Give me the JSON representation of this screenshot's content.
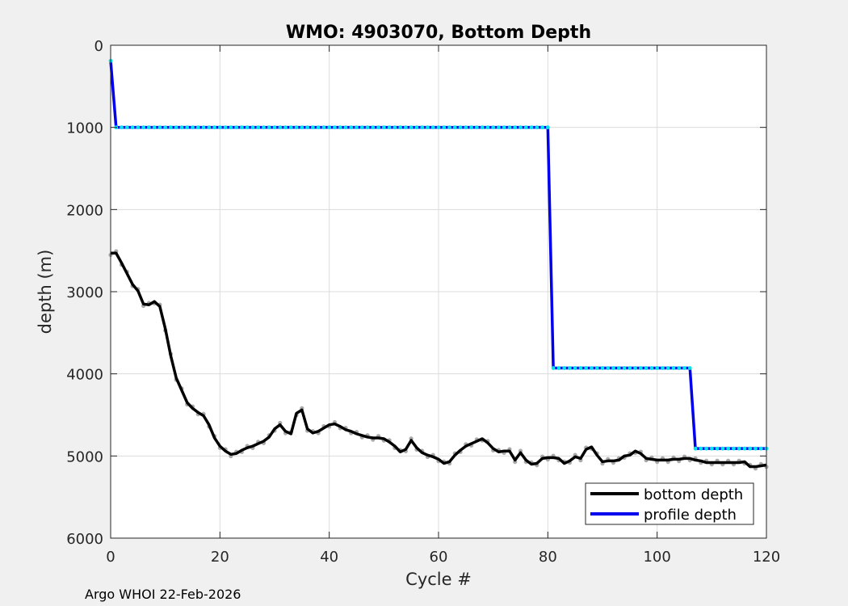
{
  "chart_data": {
    "type": "line",
    "title": "WMO: 4903070, Bottom Depth",
    "xlabel": "Cycle #",
    "ylabel": "depth (m)",
    "xlim": [
      0,
      120
    ],
    "ylim": [
      0,
      6000
    ],
    "y_reversed": true,
    "grid": true,
    "xticks": [
      0,
      20,
      40,
      60,
      80,
      100,
      120
    ],
    "yticks": [
      0,
      1000,
      2000,
      3000,
      4000,
      5000,
      6000
    ],
    "legend_position": "bottom-right",
    "legend": [
      "bottom depth",
      "profile depth"
    ],
    "series": [
      {
        "name": "bottom depth",
        "color": "#000000",
        "marker_color": "#aaaaaa",
        "points": [
          [
            0,
            2530
          ],
          [
            1,
            2530
          ],
          [
            2,
            2650
          ],
          [
            3,
            2780
          ],
          [
            4,
            2910
          ],
          [
            5,
            2990
          ],
          [
            6,
            3150
          ],
          [
            7,
            3160
          ],
          [
            8,
            3120
          ],
          [
            9,
            3180
          ],
          [
            10,
            3450
          ],
          [
            11,
            3780
          ],
          [
            12,
            4050
          ],
          [
            13,
            4200
          ],
          [
            14,
            4350
          ],
          [
            15,
            4420
          ],
          [
            16,
            4470
          ],
          [
            17,
            4510
          ],
          [
            18,
            4620
          ],
          [
            19,
            4780
          ],
          [
            20,
            4880
          ],
          [
            21,
            4940
          ],
          [
            22,
            4980
          ],
          [
            23,
            4970
          ],
          [
            24,
            4930
          ],
          [
            25,
            4900
          ],
          [
            26,
            4880
          ],
          [
            27,
            4850
          ],
          [
            28,
            4820
          ],
          [
            29,
            4770
          ],
          [
            30,
            4670
          ],
          [
            31,
            4620
          ],
          [
            32,
            4700
          ],
          [
            33,
            4730
          ],
          [
            34,
            4480
          ],
          [
            35,
            4440
          ],
          [
            36,
            4670
          ],
          [
            37,
            4720
          ],
          [
            38,
            4700
          ],
          [
            39,
            4660
          ],
          [
            40,
            4620
          ],
          [
            41,
            4610
          ],
          [
            42,
            4640
          ],
          [
            43,
            4680
          ],
          [
            44,
            4700
          ],
          [
            45,
            4730
          ],
          [
            46,
            4750
          ],
          [
            47,
            4770
          ],
          [
            48,
            4780
          ],
          [
            49,
            4780
          ],
          [
            50,
            4790
          ],
          [
            51,
            4830
          ],
          [
            52,
            4880
          ],
          [
            53,
            4950
          ],
          [
            54,
            4920
          ],
          [
            55,
            4810
          ],
          [
            56,
            4900
          ],
          [
            57,
            4960
          ],
          [
            58,
            4990
          ],
          [
            59,
            5010
          ],
          [
            60,
            5040
          ],
          [
            61,
            5090
          ],
          [
            62,
            5070
          ],
          [
            63,
            4990
          ],
          [
            64,
            4930
          ],
          [
            65,
            4880
          ],
          [
            66,
            4850
          ],
          [
            67,
            4820
          ],
          [
            68,
            4790
          ],
          [
            69,
            4840
          ],
          [
            70,
            4910
          ],
          [
            71,
            4950
          ],
          [
            72,
            4940
          ],
          [
            73,
            4940
          ],
          [
            74,
            5050
          ],
          [
            75,
            4960
          ],
          [
            76,
            5050
          ],
          [
            77,
            5100
          ],
          [
            78,
            5090
          ],
          [
            79,
            5030
          ],
          [
            80,
            5020
          ],
          [
            81,
            5020
          ],
          [
            82,
            5030
          ],
          [
            83,
            5090
          ],
          [
            84,
            5060
          ],
          [
            85,
            5010
          ],
          [
            86,
            5030
          ],
          [
            87,
            4920
          ],
          [
            88,
            4890
          ],
          [
            89,
            4990
          ],
          [
            90,
            5070
          ],
          [
            91,
            5060
          ],
          [
            92,
            5060
          ],
          [
            93,
            5050
          ],
          [
            94,
            5000
          ],
          [
            95,
            4990
          ],
          [
            96,
            4940
          ],
          [
            97,
            4970
          ],
          [
            98,
            5030
          ],
          [
            99,
            5040
          ],
          [
            100,
            5050
          ],
          [
            101,
            5050
          ],
          [
            102,
            5050
          ],
          [
            103,
            5040
          ],
          [
            104,
            5040
          ],
          [
            105,
            5030
          ],
          [
            106,
            5030
          ],
          [
            107,
            5050
          ],
          [
            108,
            5060
          ],
          [
            109,
            5080
          ],
          [
            110,
            5080
          ],
          [
            111,
            5080
          ],
          [
            112,
            5080
          ],
          [
            113,
            5080
          ],
          [
            114,
            5080
          ],
          [
            115,
            5080
          ],
          [
            116,
            5070
          ],
          [
            117,
            5130
          ],
          [
            118,
            5130
          ],
          [
            119,
            5120
          ],
          [
            120,
            5110
          ]
        ]
      },
      {
        "name": "profile depth",
        "color": "#0000ee",
        "marker_color": "#00e5ee",
        "points": [
          [
            0,
            190
          ],
          [
            1,
            1000
          ],
          [
            80,
            1000
          ],
          [
            81,
            3930
          ],
          [
            106,
            3930
          ],
          [
            107,
            4910
          ],
          [
            120,
            4910
          ]
        ]
      }
    ]
  },
  "footer": "Argo WHOI 22-Feb-2026"
}
